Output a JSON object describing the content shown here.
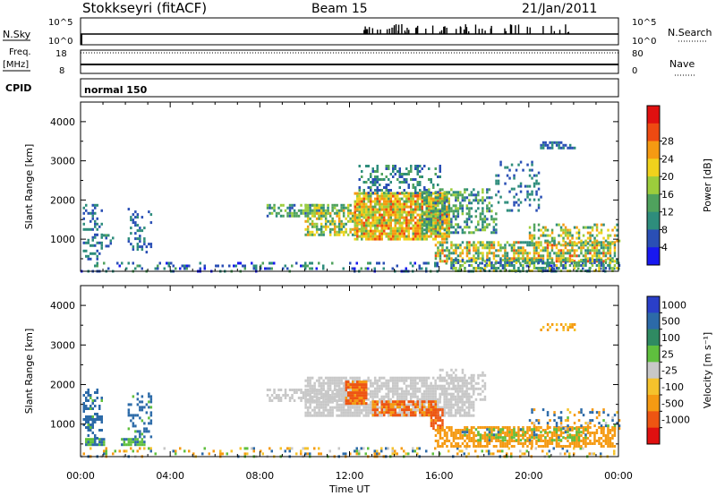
{
  "header": {
    "station": "Stokkseyri (fitACF)",
    "beam": "Beam 15",
    "date": "21/Jan/2011"
  },
  "strip_labels": {
    "nsky": "N.Sky",
    "nsearch": "N.Search",
    "freq": "Freq.",
    "mhz": "[MHz]",
    "nave": "Nave",
    "cpid": "CPID",
    "cpid_value": "normal 150",
    "noise_hi": "10^5",
    "noise_lo": "10^0",
    "freq_hi": "18",
    "freq_lo": "8",
    "nave_hi": "80",
    "nave_lo": "0"
  },
  "x_axis": {
    "label": "Time UT",
    "ticks": [
      "00:00",
      "04:00",
      "08:00",
      "12:00",
      "16:00",
      "20:00",
      "00:00"
    ]
  },
  "chart_data": [
    {
      "type": "heatmap",
      "title": "Power",
      "ylabel": "Slant Range [km]",
      "xlabel": "Time UT",
      "y_ticks": [
        1000,
        2000,
        3000,
        4000
      ],
      "ylim": [
        180,
        4500
      ],
      "xlim_hours": [
        0,
        24
      ],
      "colorbar_label": "Power [dB]",
      "colorbar_ticks": [
        4,
        8,
        12,
        16,
        20,
        24,
        28
      ],
      "colorbar_colors": [
        "#1818f0",
        "#2a4fb5",
        "#2e8d7c",
        "#4fa25d",
        "#9ccd3c",
        "#f0d21c",
        "#f59a12",
        "#ee4a12",
        "#e01010"
      ],
      "regions": [
        {
          "t0": 0.1,
          "t1": 0.9,
          "r0": 500,
          "r1": 1900,
          "density": 0.35,
          "val": [
            4,
            12
          ]
        },
        {
          "t0": 1.0,
          "t1": 1.4,
          "r0": 800,
          "r1": 1200,
          "density": 0.3,
          "val": [
            6,
            14
          ]
        },
        {
          "t0": 2.1,
          "t1": 3.1,
          "r0": 700,
          "r1": 1800,
          "density": 0.25,
          "val": [
            4,
            12
          ]
        },
        {
          "t0": 0.0,
          "t1": 24.0,
          "r0": 180,
          "r1": 420,
          "density": 0.22,
          "val": [
            2,
            14
          ]
        },
        {
          "t0": 8.3,
          "t1": 11.0,
          "r0": 1600,
          "r1": 1900,
          "density": 0.55,
          "val": [
            6,
            18
          ]
        },
        {
          "t0": 10.0,
          "t1": 12.5,
          "r0": 1100,
          "r1": 1900,
          "density": 0.6,
          "val": [
            10,
            26
          ]
        },
        {
          "t0": 12.2,
          "t1": 16.4,
          "r0": 1000,
          "r1": 2200,
          "density": 0.85,
          "val": [
            14,
            30
          ]
        },
        {
          "t0": 12.4,
          "t1": 16.0,
          "r0": 2200,
          "r1": 2900,
          "density": 0.35,
          "val": [
            4,
            16
          ]
        },
        {
          "t0": 15.2,
          "t1": 18.5,
          "r0": 1200,
          "r1": 2300,
          "density": 0.45,
          "val": [
            6,
            18
          ]
        },
        {
          "t0": 15.8,
          "t1": 23.8,
          "r0": 450,
          "r1": 950,
          "density": 0.65,
          "val": [
            8,
            30
          ]
        },
        {
          "t0": 16.5,
          "t1": 24.0,
          "r0": 200,
          "r1": 500,
          "density": 0.5,
          "val": [
            4,
            22
          ]
        },
        {
          "t0": 20.0,
          "t1": 24.0,
          "r0": 900,
          "r1": 1400,
          "density": 0.35,
          "val": [
            8,
            28
          ]
        },
        {
          "t0": 20.5,
          "t1": 22.0,
          "r0": 3300,
          "r1": 3500,
          "density": 0.5,
          "val": [
            4,
            10
          ]
        },
        {
          "t0": 18.5,
          "t1": 20.5,
          "r0": 1700,
          "r1": 3000,
          "density": 0.2,
          "val": [
            4,
            12
          ]
        }
      ]
    },
    {
      "type": "heatmap",
      "title": "Velocity",
      "ylabel": "Slant Range [km]",
      "xlabel": "Time UT",
      "y_ticks": [
        1000,
        2000,
        3000,
        4000
      ],
      "ylim": [
        180,
        4500
      ],
      "xlim_hours": [
        0,
        24
      ],
      "colorbar_label": "Velocity [m s⁻¹]",
      "colorbar_ticks": [
        "1000",
        "500",
        "100",
        "25",
        "-25",
        "-100",
        "-500",
        "-1000"
      ],
      "colorbar_colors": [
        "#2a3fc8",
        "#2c6aa8",
        "#2f8a62",
        "#5fbf3e",
        "#c8c8c8",
        "#f5c22c",
        "#f59a12",
        "#ee5512",
        "#e01010"
      ],
      "regions": [
        {
          "t0": 0.1,
          "t1": 0.9,
          "r0": 500,
          "r1": 1900,
          "density": 0.35,
          "val": [
            25,
            500
          ]
        },
        {
          "t0": 0.2,
          "t1": 1.0,
          "r0": 500,
          "r1": 650,
          "density": 0.9,
          "val": [
            60,
            120
          ]
        },
        {
          "t0": 1.8,
          "t1": 2.8,
          "r0": 500,
          "r1": 650,
          "density": 0.9,
          "val": [
            60,
            120
          ]
        },
        {
          "t0": 2.1,
          "t1": 3.1,
          "r0": 700,
          "r1": 1800,
          "density": 0.25,
          "val": [
            25,
            500
          ]
        },
        {
          "t0": 0.0,
          "t1": 24.0,
          "r0": 180,
          "r1": 420,
          "density": 0.2,
          "val": [
            -200,
            200
          ]
        },
        {
          "t0": 8.3,
          "t1": 12.0,
          "r0": 1600,
          "r1": 1900,
          "density": 0.65,
          "val": [
            -20,
            20
          ]
        },
        {
          "t0": 10.0,
          "t1": 17.5,
          "r0": 1200,
          "r1": 2200,
          "density": 0.75,
          "val": [
            -20,
            20
          ]
        },
        {
          "t0": 11.8,
          "t1": 12.7,
          "r0": 1500,
          "r1": 2100,
          "density": 0.9,
          "val": [
            -1000,
            -300
          ]
        },
        {
          "t0": 13.0,
          "t1": 15.8,
          "r0": 1200,
          "r1": 1600,
          "density": 0.7,
          "val": [
            -1000,
            -300
          ]
        },
        {
          "t0": 15.6,
          "t1": 16.1,
          "r0": 900,
          "r1": 1400,
          "density": 0.7,
          "val": [
            -1000,
            -400
          ]
        },
        {
          "t0": 15.8,
          "t1": 23.8,
          "r0": 450,
          "r1": 950,
          "density": 0.65,
          "val": [
            -500,
            -100
          ]
        },
        {
          "t0": 17.0,
          "t1": 22.5,
          "r0": 600,
          "r1": 900,
          "density": 0.3,
          "val": [
            30,
            120
          ]
        },
        {
          "t0": 20.0,
          "t1": 24.0,
          "r0": 900,
          "r1": 1400,
          "density": 0.3,
          "val": [
            -300,
            500
          ]
        },
        {
          "t0": 20.5,
          "t1": 22.0,
          "r0": 3400,
          "r1": 3550,
          "density": 0.5,
          "val": [
            -200,
            -50
          ]
        },
        {
          "t0": 16.0,
          "t1": 18.0,
          "r0": 1600,
          "r1": 2400,
          "density": 0.35,
          "val": [
            -20,
            20
          ]
        }
      ]
    }
  ]
}
